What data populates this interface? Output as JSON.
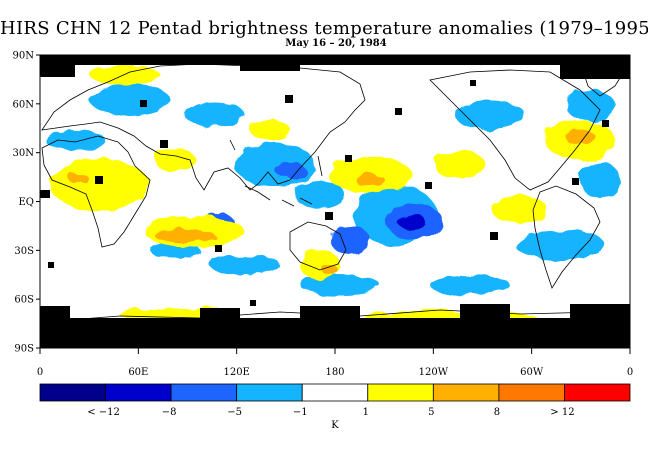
{
  "title": "HIRS CHN 12 Pentad brightness temperature anomalies (1979–1995)",
  "subtitle": "May 16 – 20, 1984",
  "map": {
    "projection": "cylindrical equidistant",
    "lon_range": [
      0,
      360
    ],
    "lat_range": [
      -90,
      90
    ],
    "y_ticks": [
      {
        "lat": 90,
        "label": "90N"
      },
      {
        "lat": 60,
        "label": "60N"
      },
      {
        "lat": 30,
        "label": "30N"
      },
      {
        "lat": 0,
        "label": "EQ"
      },
      {
        "lat": -30,
        "label": "30S"
      },
      {
        "lat": -60,
        "label": "60S"
      },
      {
        "lat": -90,
        "label": "90S"
      }
    ],
    "x_ticks": [
      {
        "lon": 0,
        "label": "0"
      },
      {
        "lon": 60,
        "label": "60E"
      },
      {
        "lon": 120,
        "label": "120E"
      },
      {
        "lon": 180,
        "label": "180"
      },
      {
        "lon": 240,
        "label": "120W"
      },
      {
        "lon": 300,
        "label": "60W"
      },
      {
        "lon": 360,
        "label": "0"
      }
    ]
  },
  "colorbar": {
    "unit": "K",
    "colors": [
      "#00008b",
      "#0000cd",
      "#1e64ff",
      "#14b4ff",
      "#ffffff",
      "#ffff00",
      "#ffb000",
      "#ff7800",
      "#ff0000"
    ],
    "labels": [
      "< −12",
      "−8",
      "−5",
      "−1",
      "1",
      "5",
      "8",
      "> 12"
    ],
    "missing_color": "#000000"
  }
}
